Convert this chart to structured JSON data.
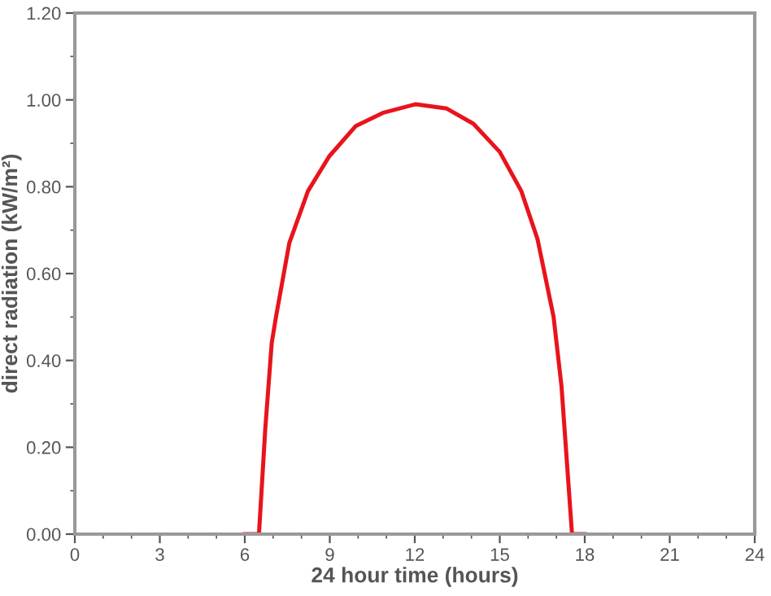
{
  "chart_data": {
    "type": "line",
    "xlabel": "24 hour time (hours)",
    "ylabel": "direct radiation (kW/m²)",
    "xlim": [
      0,
      24
    ],
    "xticks": [
      0,
      3,
      6,
      9,
      12,
      15,
      18,
      21,
      24
    ],
    "ylim": [
      0,
      1.2
    ],
    "yticks": [
      {
        "value": 0,
        "label": "0.00"
      },
      {
        "value": 0.2,
        "label": "0.20"
      },
      {
        "value": 0.4,
        "label": "0.40"
      },
      {
        "value": 0.6,
        "label": "0.60"
      },
      {
        "value": 0.8,
        "label": "0.80"
      },
      {
        "value": 1.0,
        "label": "1.00"
      },
      {
        "value": 1.2,
        "label": "1.20"
      }
    ],
    "grid": false,
    "marker": "none",
    "line_style": "solid",
    "series": [
      {
        "color": "#e8141c",
        "x": [
          6.0,
          6.5,
          6.72,
          6.95,
          7.1,
          7.57,
          8.23,
          8.98,
          9.92,
          10.87,
          12.03,
          13.13,
          14.07,
          15.0,
          15.76,
          16.33,
          16.9,
          17.18,
          17.42,
          17.55,
          18.0
        ],
        "values": [
          0,
          0,
          0.24,
          0.44,
          0.5,
          0.67,
          0.79,
          0.87,
          0.94,
          0.97,
          0.99,
          0.98,
          0.945,
          0.88,
          0.79,
          0.68,
          0.5,
          0.34,
          0.12,
          0,
          0
        ]
      }
    ]
  }
}
